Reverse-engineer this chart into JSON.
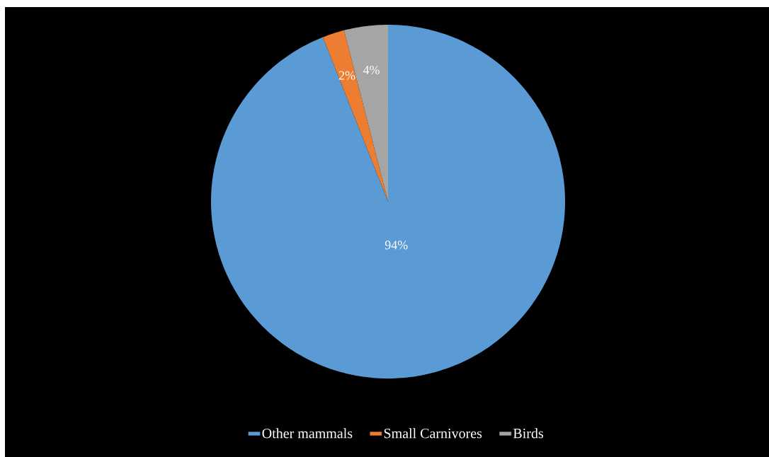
{
  "chart_data": {
    "type": "pie",
    "categories": [
      "Other mammals",
      "Small Carnivores",
      "Birds"
    ],
    "values": [
      94,
      2,
      4
    ],
    "colors": [
      "#5b9bd5",
      "#ed7d31",
      "#a5a5a5"
    ],
    "value_labels": [
      "94%",
      "2%",
      "4%"
    ],
    "legend": "bottom"
  }
}
